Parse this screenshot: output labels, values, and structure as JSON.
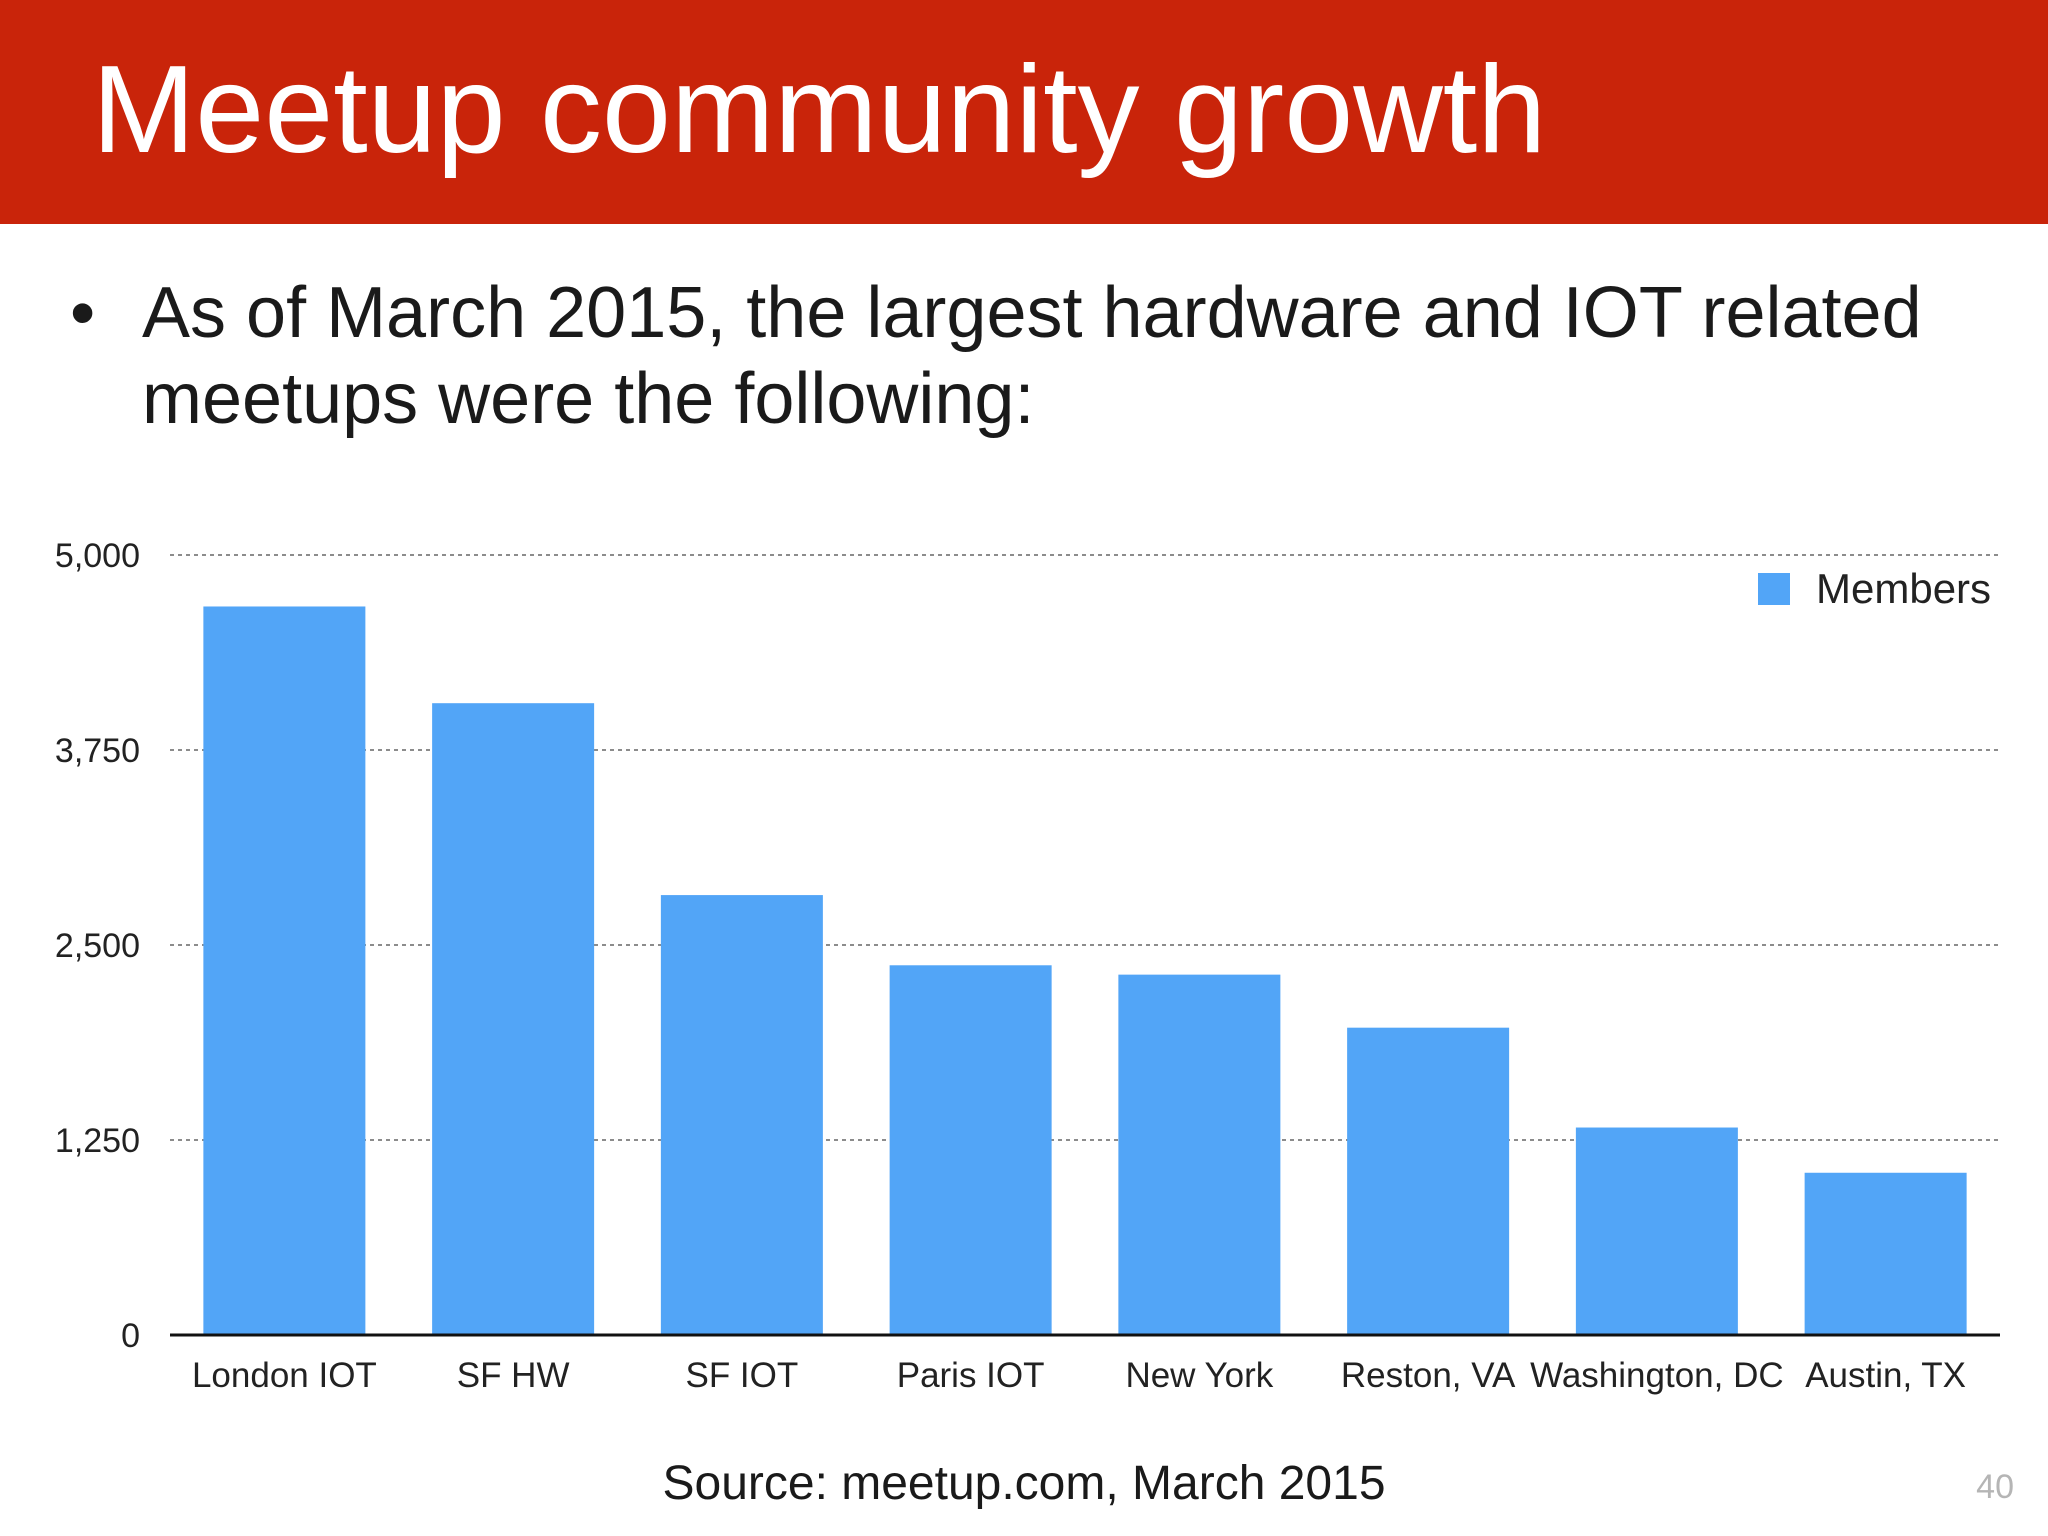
{
  "slide": {
    "title": "Meetup community growth",
    "bullet_marker": "•",
    "bullet": "As of March 2015, the largest hardware and IOT related meetups were the following:",
    "source": "Source: meetup.com, March 2015",
    "page_number": "40"
  },
  "colors": {
    "title_bar": "#c9240a",
    "bar": "#52a5f7",
    "text": "#1a1a1a",
    "gridline": "#8c8c8c"
  },
  "chart_data": {
    "type": "bar",
    "categories": [
      "London IOT",
      "SF HW",
      "SF IOT",
      "Paris IOT",
      "New York",
      "Reston, VA",
      "Washington, DC",
      "Austin, TX"
    ],
    "series": [
      {
        "name": "Members",
        "values": [
          4670,
          4050,
          2820,
          2370,
          2310,
          1970,
          1330,
          1040
        ]
      }
    ],
    "ylim": [
      0,
      5000
    ],
    "yticks": [
      0,
      1250,
      2500,
      3750,
      5000
    ],
    "ytick_labels": [
      "0",
      "1,250",
      "2,500",
      "3,750",
      "5,000"
    ],
    "grid": true,
    "legend_position": "top-right",
    "title": "",
    "xlabel": "",
    "ylabel": ""
  }
}
